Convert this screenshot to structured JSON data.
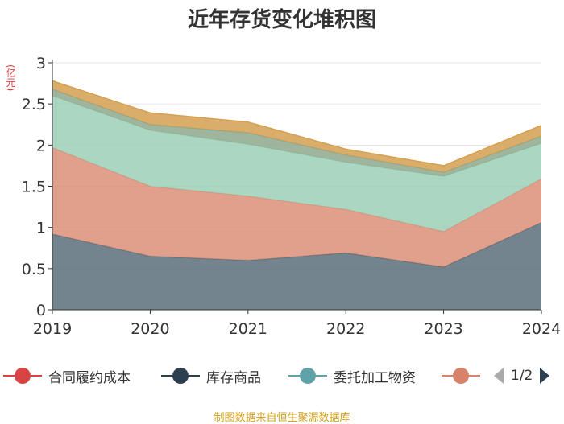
{
  "chart_data": {
    "type": "area",
    "stacked": true,
    "title": "近年存货变化堆积图",
    "ylabel": "(亿元)",
    "x": [
      "2019",
      "2020",
      "2021",
      "2022",
      "2023",
      "2024"
    ],
    "ylim": [
      0,
      3
    ],
    "yticks": [
      "0",
      "0.5",
      "1",
      "1.5",
      "2",
      "2.5",
      "3"
    ],
    "grid": true,
    "series": [
      {
        "name": "库存商品",
        "color": "#5a6e7a",
        "values": [
          0.92,
          0.65,
          0.6,
          0.69,
          0.52,
          1.06
        ]
      },
      {
        "name": "",
        "color": "#dc8f78",
        "values": [
          1.05,
          0.85,
          0.78,
          0.53,
          0.43,
          0.53
        ]
      },
      {
        "name": "委托加工物资",
        "color": "#9ccfb6",
        "values": [
          0.63,
          0.68,
          0.63,
          0.57,
          0.67,
          0.43
        ]
      },
      {
        "name": "",
        "color": "#8fa88c",
        "values": [
          0.08,
          0.07,
          0.14,
          0.09,
          0.05,
          0.09
        ]
      },
      {
        "name": "",
        "color": "#d4a050",
        "values": [
          0.1,
          0.14,
          0.13,
          0.07,
          0.08,
          0.13
        ]
      }
    ]
  },
  "legend": {
    "items": [
      {
        "label": "合同履约成本",
        "color": "#d84343"
      },
      {
        "label": "库存商品",
        "color": "#2e4050"
      },
      {
        "label": "委托加工物资",
        "color": "#5fa3a8"
      },
      {
        "label": "",
        "color": "#d9826a"
      }
    ],
    "page": "1/2"
  },
  "source": "制图数据来自恒生聚源数据库"
}
